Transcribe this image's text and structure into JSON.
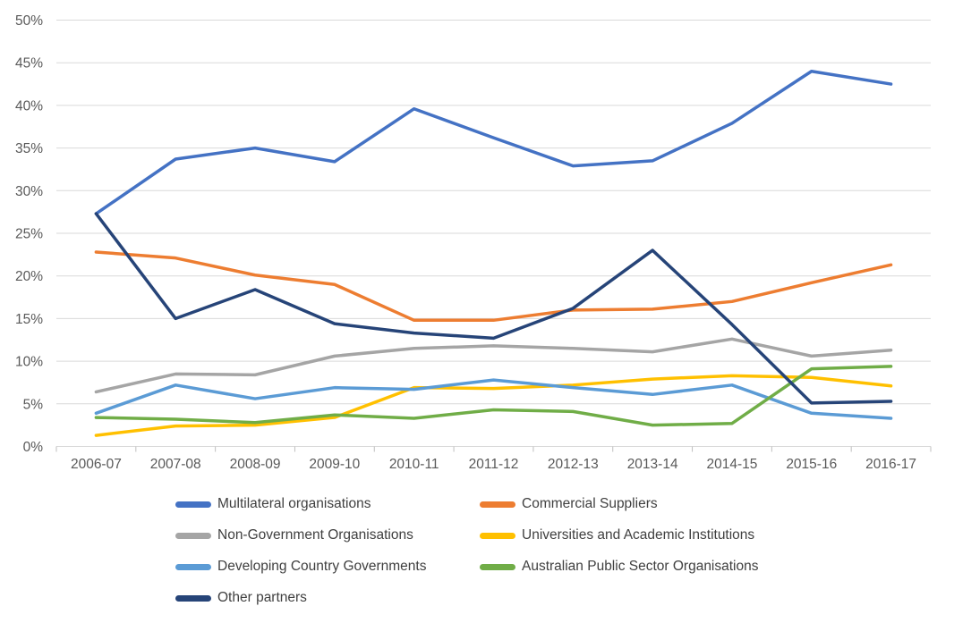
{
  "chart_data": {
    "type": "line",
    "title": "",
    "xlabel": "",
    "ylabel": "",
    "categories": [
      "2006-07",
      "2007-08",
      "2008-09",
      "2009-10",
      "2010-11",
      "2011-12",
      "2012-13",
      "2013-14",
      "2014-15",
      "2015-16",
      "2016-17"
    ],
    "series": [
      {
        "name": "Multilateral organisations",
        "color": "#4472C4",
        "values": [
          27.3,
          33.7,
          35.0,
          33.4,
          39.6,
          36.2,
          32.9,
          33.5,
          37.9,
          44.0,
          42.5
        ]
      },
      {
        "name": "Commercial Suppliers",
        "color": "#ED7D31",
        "values": [
          22.8,
          22.1,
          20.1,
          19.0,
          14.8,
          14.8,
          16.0,
          16.1,
          17.0,
          19.2,
          21.3
        ]
      },
      {
        "name": "Non-Government Organisations",
        "color": "#A5A5A5",
        "values": [
          6.4,
          8.5,
          8.4,
          10.6,
          11.5,
          11.8,
          11.5,
          11.1,
          12.6,
          10.6,
          11.3
        ]
      },
      {
        "name": "Universities and Academic Institutions",
        "color": "#FFC000",
        "values": [
          1.3,
          2.4,
          2.5,
          3.4,
          6.9,
          6.8,
          7.2,
          7.9,
          8.3,
          8.1,
          7.1
        ]
      },
      {
        "name": "Developing Country Governments",
        "color": "#5B9BD5",
        "values": [
          3.9,
          7.2,
          5.6,
          6.9,
          6.7,
          7.8,
          6.9,
          6.1,
          7.2,
          3.9,
          3.3
        ]
      },
      {
        "name": "Australian Public Sector Organisations",
        "color": "#70AD47",
        "values": [
          3.4,
          3.2,
          2.8,
          3.7,
          3.3,
          4.3,
          4.1,
          2.5,
          2.7,
          9.1,
          9.4
        ]
      },
      {
        "name": "Other partners",
        "color": "#264478",
        "values": [
          27.3,
          15.0,
          18.4,
          14.4,
          13.3,
          12.7,
          16.2,
          23.0,
          14.3,
          5.1,
          5.3
        ]
      }
    ],
    "ylim": [
      0,
      50
    ],
    "ytick_step": 5,
    "ytick_suffix": "%",
    "grid": true,
    "legend_position": "bottom",
    "colors": {
      "gridline": "#D9D9D9",
      "axis_line": "#D9D9D9",
      "tick_mark": "#BFBFBF",
      "axis_label": "#595959",
      "legend_label": "#404040",
      "background": "#FFFFFF"
    }
  }
}
